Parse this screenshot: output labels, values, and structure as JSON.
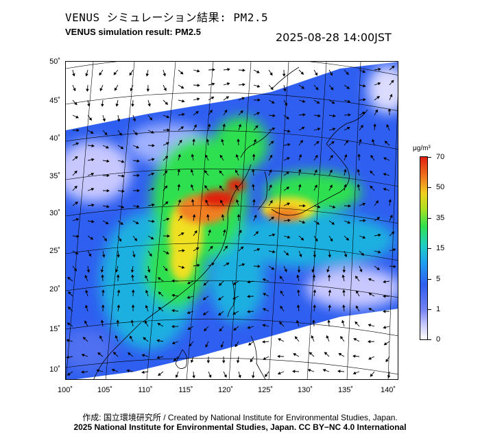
{
  "header": {
    "title_jp": "VENUS シミュレーション結果: PM2.5",
    "title_en": "VENUS simulation result: PM2.5",
    "timestamp": "2025-08-28 14:00JST"
  },
  "map": {
    "lat_labels": [
      "50˚",
      "45˚",
      "40˚",
      "35˚",
      "30˚",
      "25˚",
      "20˚",
      "15˚",
      "10˚"
    ],
    "lon_labels": [
      "100˚",
      "105˚",
      "110˚",
      "115˚",
      "120˚",
      "125˚",
      "130˚",
      "135˚",
      "140˚"
    ],
    "field_colors": {
      "white": "#ffffff",
      "lavender": "#c8c8ff",
      "blue": "#2f5ff0",
      "cyan": "#1fb0e0",
      "green": "#2fe050",
      "yellow": "#f0e020",
      "orange": "#f08020",
      "red": "#e02010"
    }
  },
  "legend": {
    "unit": "μg/m³",
    "ticks": [
      "70",
      "50",
      "35",
      "15",
      "5",
      "1",
      "0"
    ]
  },
  "footer": {
    "credit_line1": "作成: 国立環境研究所 / Created by National Institute for Environmental Studies, Japan.",
    "credit_line2": "2025 National Institute for Environmental Studies, Japan. CC BY−NC 4.0 International"
  }
}
